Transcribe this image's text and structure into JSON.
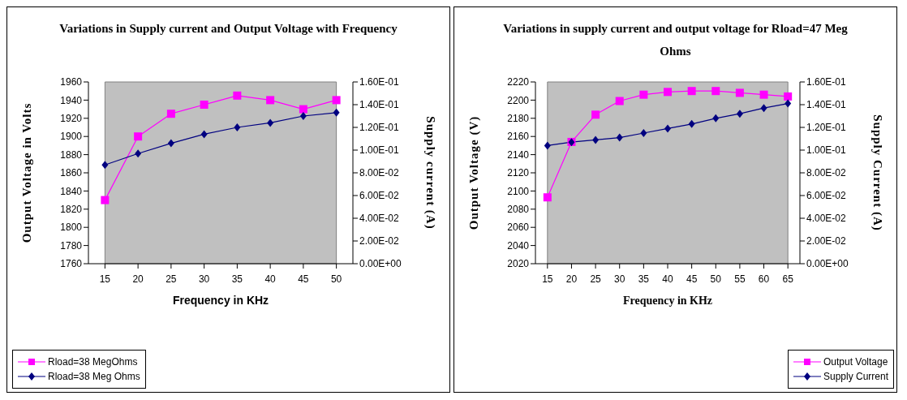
{
  "chart_data": [
    {
      "type": "line",
      "title": "Variations in Supply current and Output Voltage with Frequency",
      "xlabel": "Frequency in KHz",
      "ylabel": "Output Voltage in Volts",
      "y2label": "Supply current (A)",
      "categories": [
        "15",
        "20",
        "25",
        "30",
        "35",
        "40",
        "45",
        "50"
      ],
      "series": [
        {
          "name": "Rload=38 MegOhms",
          "color": "#ff00ff",
          "marker": "square",
          "values": [
            1830,
            1900,
            1925,
            1935,
            1945,
            1940,
            1930,
            1940
          ]
        },
        {
          "name": "Rload=38 Meg Ohms",
          "color": "#000080",
          "marker": "diamond",
          "axis": "y2",
          "values": [
            0.087,
            0.097,
            0.106,
            0.114,
            0.12,
            0.124,
            0.13,
            0.133
          ]
        }
      ],
      "ylim": [
        1760,
        1960
      ],
      "yticks": [
        1760,
        1780,
        1800,
        1820,
        1840,
        1860,
        1880,
        1900,
        1920,
        1940,
        1960
      ],
      "y2lim": [
        0,
        0.16
      ],
      "y2ticks": [
        {
          "value": 0,
          "label": "0.00E+00"
        },
        {
          "value": 0.02,
          "label": "2.00E-02"
        },
        {
          "value": 0.04,
          "label": "4.00E-02"
        },
        {
          "value": 0.06,
          "label": "6.00E-02"
        },
        {
          "value": 0.08,
          "label": "8.00E-02"
        },
        {
          "value": 0.1,
          "label": "1.00E-01"
        },
        {
          "value": 0.12,
          "label": "1.20E-01"
        },
        {
          "value": 0.14,
          "label": "1.40E-01"
        },
        {
          "value": 0.16,
          "label": "1.60E-01"
        }
      ],
      "grid": false,
      "legend": "bottom left",
      "line_style": "solid"
    },
    {
      "type": "line",
      "title": "Variations in supply current and output voltage for Rload=47 Meg Ohms",
      "xlabel": "Frequency in KHz",
      "ylabel": "Output Voltage (V)",
      "y2label": "Supply Current (A)",
      "categories": [
        "15",
        "20",
        "25",
        "30",
        "35",
        "40",
        "45",
        "50",
        "55",
        "60",
        "65"
      ],
      "series": [
        {
          "name": "Output Voltage",
          "color": "#ff00ff",
          "marker": "square",
          "values": [
            2093,
            2154,
            2184,
            2199,
            2206,
            2209,
            2210,
            2210,
            2208,
            2206,
            2204
          ]
        },
        {
          "name": "Supply Current",
          "color": "#000080",
          "marker": "diamond",
          "axis": "y2",
          "values": [
            0.104,
            0.107,
            0.109,
            0.111,
            0.115,
            0.119,
            0.123,
            0.128,
            0.132,
            0.137,
            0.141
          ]
        }
      ],
      "ylim": [
        2020,
        2220
      ],
      "yticks": [
        2020,
        2040,
        2060,
        2080,
        2100,
        2120,
        2140,
        2160,
        2180,
        2200,
        2220
      ],
      "y2lim": [
        0,
        0.16
      ],
      "y2ticks": [
        {
          "value": 0,
          "label": "0.00E+00"
        },
        {
          "value": 0.02,
          "label": "2.00E-02"
        },
        {
          "value": 0.04,
          "label": "4.00E-02"
        },
        {
          "value": 0.06,
          "label": "6.00E-02"
        },
        {
          "value": 0.08,
          "label": "8.00E-02"
        },
        {
          "value": 0.1,
          "label": "1.00E-01"
        },
        {
          "value": 0.12,
          "label": "1.20E-01"
        },
        {
          "value": 0.14,
          "label": "1.40E-01"
        },
        {
          "value": 0.16,
          "label": "1.60E-01"
        }
      ],
      "grid": false,
      "legend": "bottom right",
      "line_style": "solid"
    }
  ]
}
